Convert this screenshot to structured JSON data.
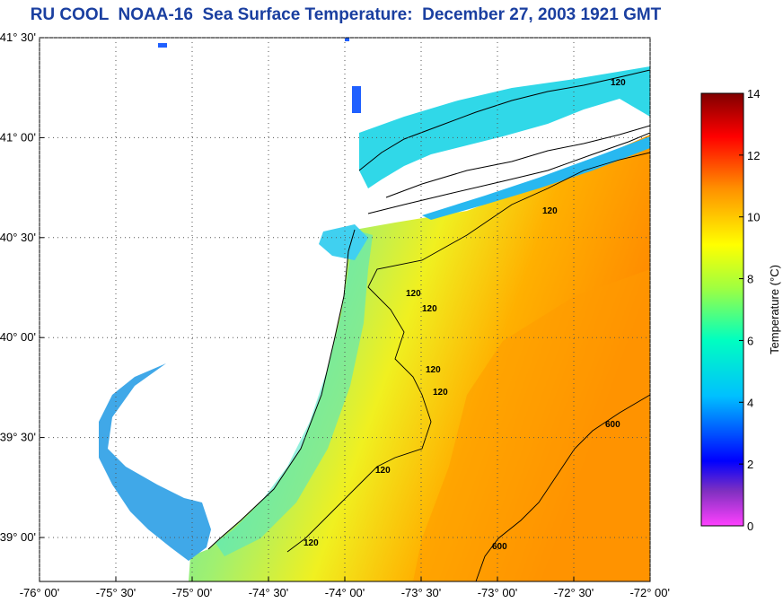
{
  "title": "RU COOL  NOAA-16  Sea Surface Temperature:  December 27, 2003 1921 GMT",
  "lat_labels": [
    {
      "label": "41° 30'",
      "value": 41.5
    },
    {
      "label": "41° 00'",
      "value": 41.0
    },
    {
      "label": "40° 30'",
      "value": 40.5
    },
    {
      "label": "40° 00'",
      "value": 40.0
    },
    {
      "label": "39° 30'",
      "value": 39.5
    },
    {
      "label": "39° 00'",
      "value": 39.0
    }
  ],
  "lon_labels": [
    {
      "label": "-76° 00'",
      "value": -76.0
    },
    {
      "label": "-75° 30'",
      "value": -75.5
    },
    {
      "label": "-75° 00'",
      "value": -75.0
    },
    {
      "label": "-74° 30'",
      "value": -74.5
    },
    {
      "label": "-74° 00'",
      "value": -74.0
    },
    {
      "label": "-73° 30'",
      "value": -73.5
    },
    {
      "label": "-73° 00'",
      "value": -73.0
    },
    {
      "label": "-72° 30'",
      "value": -72.5
    },
    {
      "label": "-72° 00'",
      "value": -72.0
    }
  ],
  "colorbar": {
    "label": "Temperature (°C)",
    "ticks": [
      "0",
      "2",
      "4",
      "6",
      "8",
      "10",
      "12",
      "14"
    ],
    "range": [
      0,
      14
    ],
    "colors": [
      "#ff40ff",
      "#8030c0",
      "#0000ff",
      "#00c0ff",
      "#00ffc0",
      "#a0ff40",
      "#ffff00",
      "#ff9000",
      "#ff0000",
      "#800000"
    ]
  },
  "contour_labels": [
    "120",
    "120",
    "120",
    "120",
    "120",
    "120",
    "120",
    "120",
    "600",
    "600"
  ]
}
